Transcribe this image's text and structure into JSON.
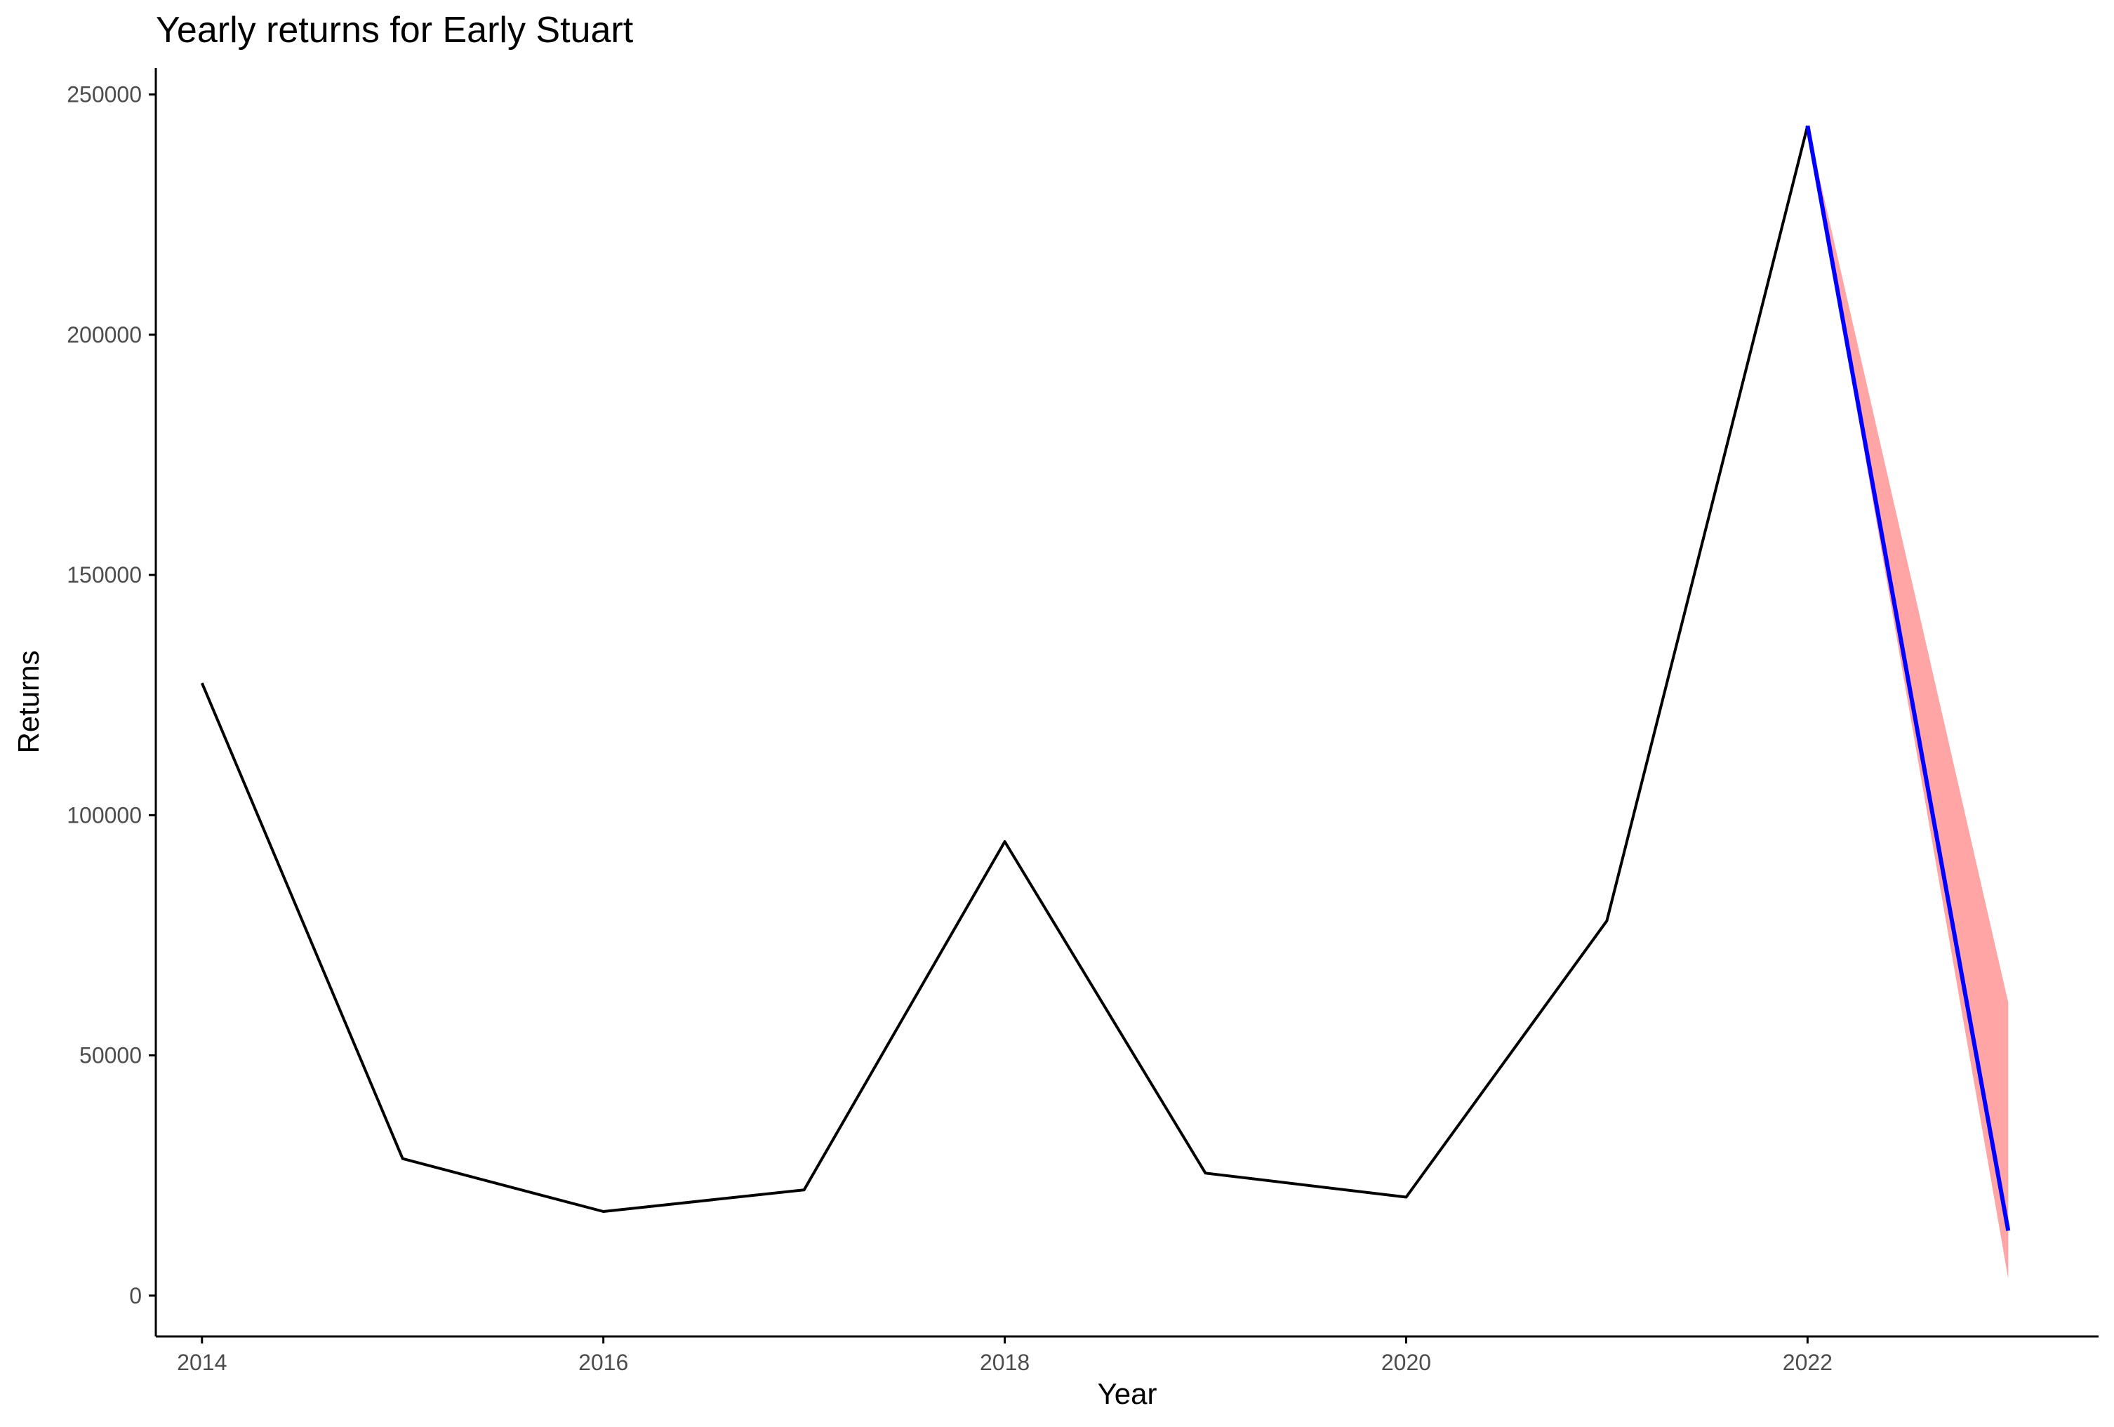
{
  "chart_data": {
    "type": "line",
    "title": "Yearly returns for Early Stuart",
    "xlabel": "Year",
    "ylabel": "Returns",
    "xlim": [
      2013.77,
      2023.45
    ],
    "ylim": [
      -8500,
      255500
    ],
    "x_ticks": [
      2014,
      2016,
      2018,
      2020,
      2022
    ],
    "x_tick_labels": [
      "2014",
      "2016",
      "2018",
      "2020",
      "2022"
    ],
    "y_ticks": [
      0,
      50000,
      100000,
      150000,
      200000,
      250000
    ],
    "y_tick_labels": [
      "0",
      "50000",
      "100000",
      "150000",
      "200000",
      "250000"
    ],
    "grid": false,
    "legend": "none",
    "series": [
      {
        "color": "#000000",
        "x": [
          2014,
          2015,
          2016,
          2017,
          2018,
          2019,
          2020,
          2021,
          2022
        ],
        "y": [
          127500,
          28500,
          17500,
          22000,
          94500,
          25500,
          20500,
          78000,
          243500
        ]
      },
      {
        "color": "#0000ff",
        "x": [
          2022,
          2023
        ],
        "y": [
          243500,
          13500
        ]
      }
    ],
    "bands": [
      {
        "fill": "#ffa5a5",
        "x": [
          2022,
          2023
        ],
        "lower": [
          243500,
          3500
        ],
        "upper": [
          243500,
          61000
        ]
      }
    ]
  }
}
